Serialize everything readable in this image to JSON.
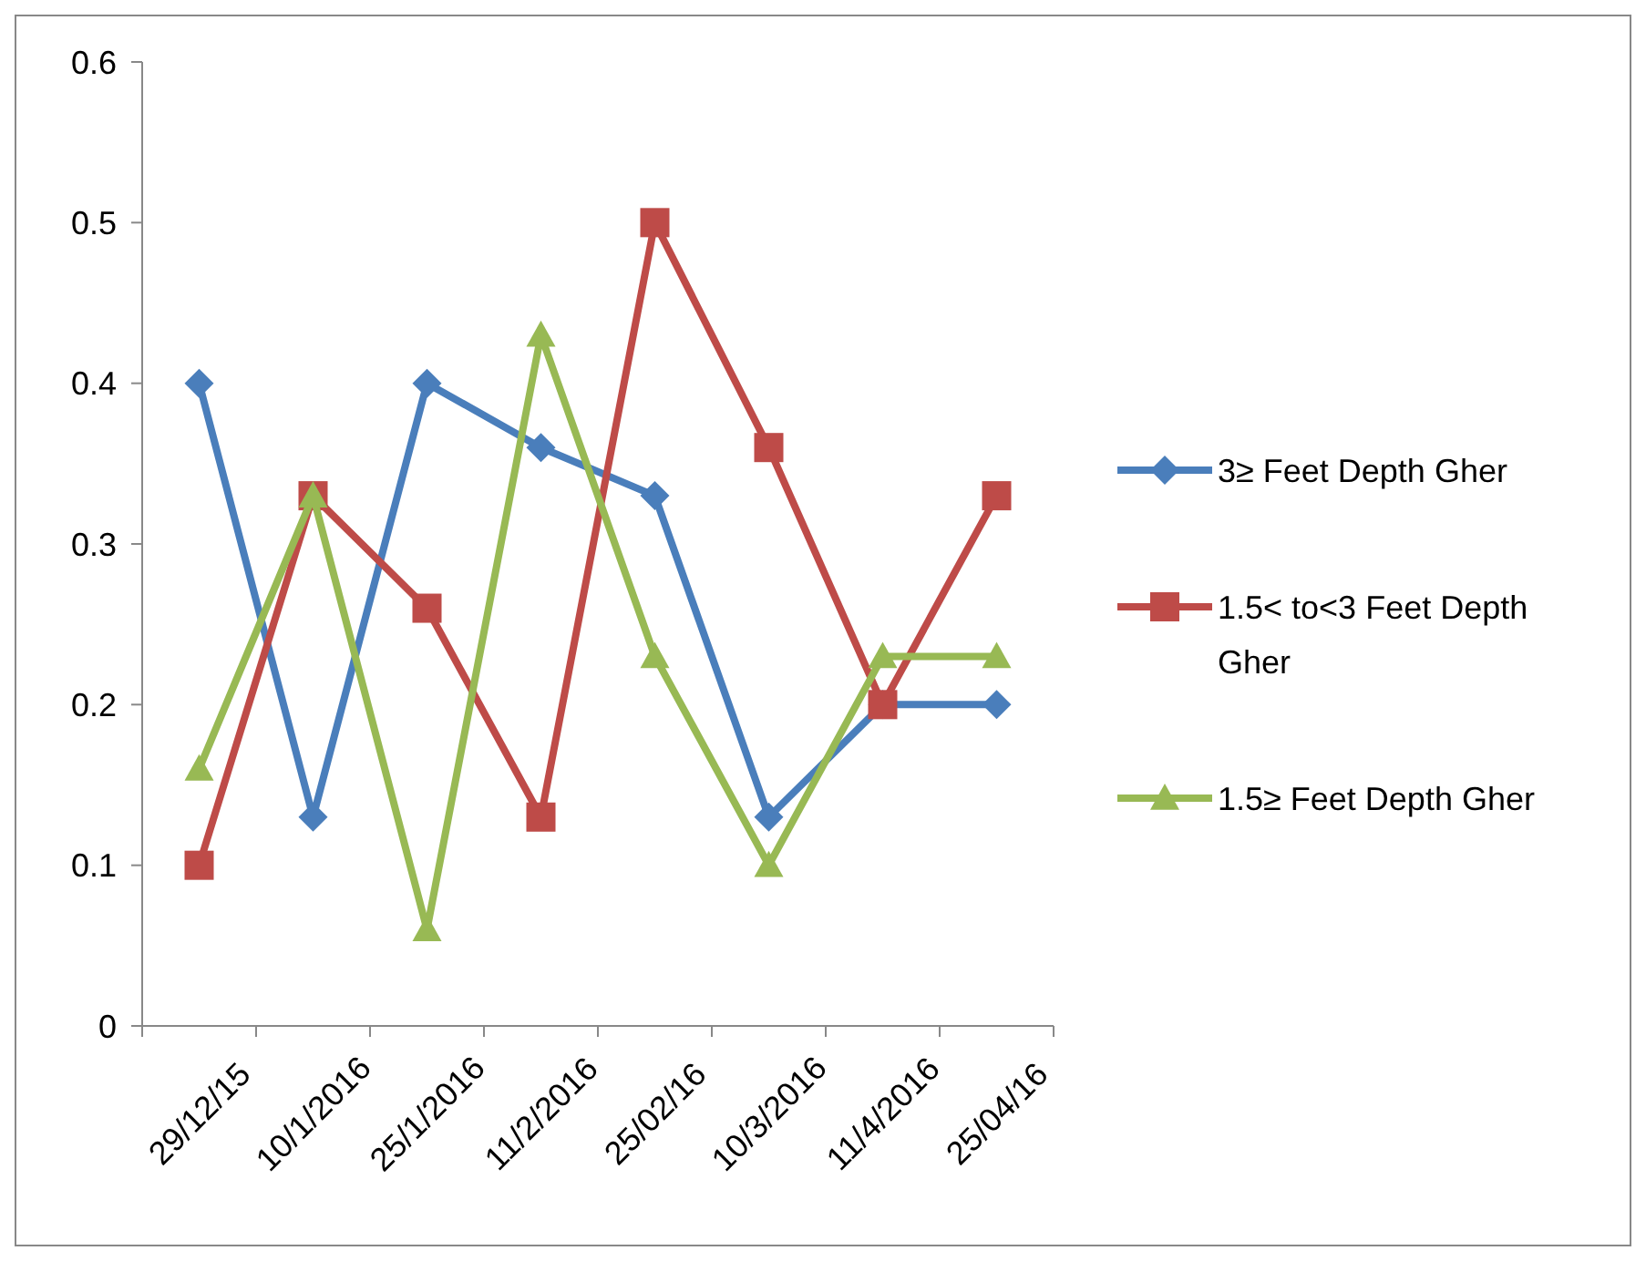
{
  "chart_data": {
    "type": "line",
    "categories": [
      "29/12/15",
      "10/1/2016",
      "25/1/2016",
      "11/2/2016",
      "25/02/16",
      "10/3/2016",
      "11/4/2016",
      "25/04/16"
    ],
    "ylim": [
      0,
      0.6
    ],
    "yticks": [
      0,
      0.1,
      0.2,
      0.3,
      0.4,
      0.5,
      0.6
    ],
    "grid": false,
    "legend": "right",
    "series": [
      {
        "name": "3≥ Feet Depth Gher",
        "color": "#4a7ebb",
        "marker": "diamond",
        "values": [
          0.4,
          0.13,
          0.4,
          0.36,
          0.33,
          0.13,
          0.2,
          0.2
        ]
      },
      {
        "name": "1.5< to<3 Feet Depth Gher",
        "color": "#be4b48",
        "marker": "square",
        "values": [
          0.1,
          0.33,
          0.26,
          0.13,
          0.5,
          0.36,
          0.2,
          0.33
        ]
      },
      {
        "name": "1.5≥ Feet Depth Gher",
        "color": "#98b954",
        "marker": "triangle",
        "values": [
          0.16,
          0.33,
          0.06,
          0.43,
          0.23,
          0.1,
          0.23,
          0.23
        ]
      }
    ]
  }
}
